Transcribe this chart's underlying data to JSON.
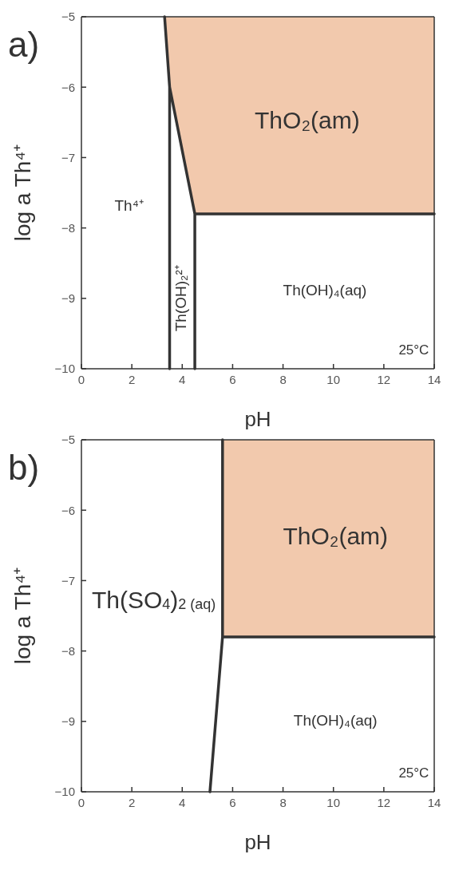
{
  "chart_data": [
    {
      "type": "line",
      "title": "a)",
      "xlabel": "pH",
      "ylabel": "log a Th⁴⁺",
      "xlim": [
        0,
        14
      ],
      "ylim": [
        -10,
        -5
      ],
      "xticks": [
        0,
        2,
        4,
        6,
        8,
        10,
        12,
        14
      ],
      "yticks": [
        -10,
        -9,
        -8,
        -7,
        -6,
        -5
      ],
      "series": [
        {
          "type": "area",
          "color": "#f2c9ad",
          "x": [
            3.3,
            3.5,
            4.5,
            14
          ],
          "values": [
            -5,
            -6,
            -7.8,
            -7.8
          ]
        },
        {
          "color": "#333333",
          "x": [
            4.5,
            4.5,
            14,
            null,
            3.5,
            3.5,
            3.3,
            null,
            3.5,
            4.5
          ],
          "values": [
            -10,
            -7.8,
            -7.8,
            null,
            -10,
            -6,
            -5,
            null,
            -6,
            -7.8
          ]
        }
      ],
      "annotations": [
        "ThO₂(am)",
        "Th⁴⁺",
        "Th(OH)₂²⁺",
        "Th(OH)₄(aq)",
        "25°C"
      ]
    },
    {
      "type": "line",
      "title": "b)",
      "xlabel": "pH",
      "ylabel": "log a Th⁴⁺",
      "xlim": [
        0,
        14
      ],
      "ylim": [
        -10,
        -5
      ],
      "xticks": [
        0,
        2,
        4,
        6,
        8,
        10,
        12,
        14
      ],
      "yticks": [
        -10,
        -9,
        -8,
        -7,
        -6,
        -5
      ],
      "series": [
        {
          "type": "area",
          "color": "#f2c9ad",
          "x": [
            5.6,
            14
          ],
          "values": [
            -7.8,
            -7.8
          ]
        },
        {
          "color": "#333333",
          "x": [
            5.1,
            5.6,
            14,
            null,
            5.6,
            5.6
          ],
          "values": [
            -10,
            -7.8,
            -7.8,
            null,
            -7.8,
            -5
          ]
        }
      ],
      "annotations": [
        "ThO₂(am)",
        "Th(SO$_{4}$)$_{2 (aq)}$",
        "Th(OH)₄(aq)",
        "25°C"
      ]
    }
  ]
}
